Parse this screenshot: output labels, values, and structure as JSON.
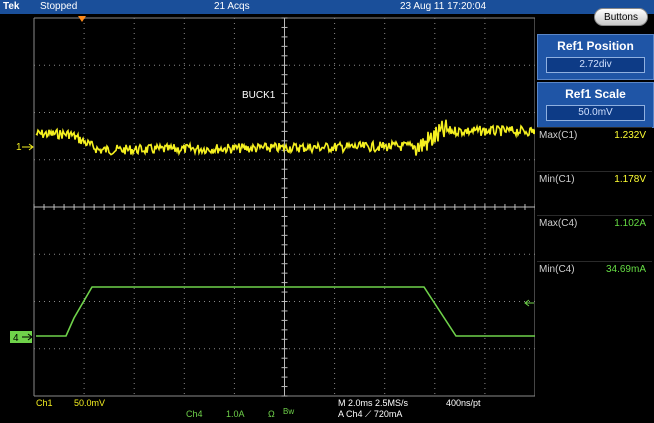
{
  "header": {
    "brand": "Tek",
    "status": "Stopped",
    "acquisitions": "21 Acqs",
    "datetime": "23 Aug 11 17:20:04"
  },
  "side_panel": {
    "buttons_label": "Buttons",
    "ref1_position": {
      "title": "Ref1 Position",
      "value": "2.72div"
    },
    "ref1_scale": {
      "title": "Ref1 Scale",
      "value": "50.0mV"
    }
  },
  "measurements": [
    {
      "label": "Max(C1)",
      "value": "1.232V",
      "channel": "C1"
    },
    {
      "label": "Min(C1)",
      "value": "1.178V",
      "channel": "C1"
    },
    {
      "label": "Max(C4)",
      "value": "1.102A",
      "channel": "C4"
    },
    {
      "label": "Min(C4)",
      "value": "34.69mA",
      "channel": "C4"
    }
  ],
  "display": {
    "waveform_label": "BUCK1",
    "ch1_marker": "1",
    "ch4_marker": "4",
    "colors": {
      "ch1": "#f5f020",
      "ch4": "#6fd24a",
      "grid": "#9a9a9a",
      "status_bar": "#1a4f9a"
    }
  },
  "readout": {
    "ch1_name": "Ch1",
    "ch1_scale": "50.0mV",
    "ch4_name": "Ch4",
    "ch4_scale": "1.0A",
    "ch4_coupling": "Ω",
    "ch4_bw": "Bw",
    "timebase": "M 2.0ms 2.5MS/s",
    "trigger": "A  Ch4  ⟋  720mA",
    "record": "400ns/pt"
  }
}
